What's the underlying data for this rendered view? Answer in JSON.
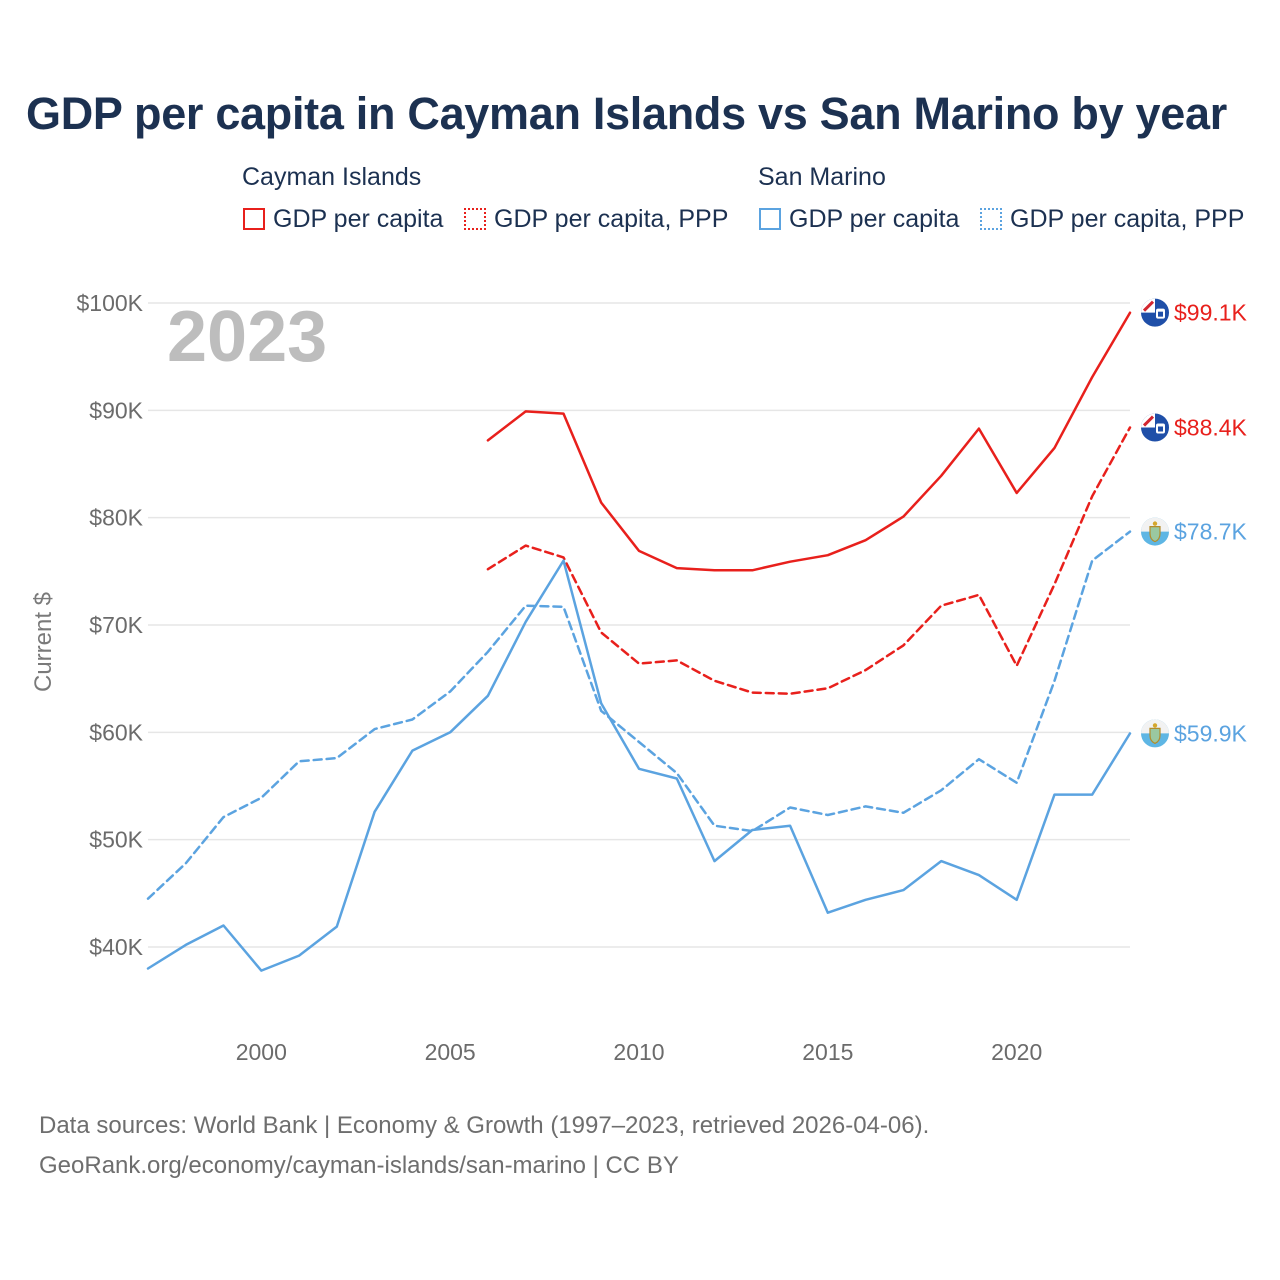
{
  "title": "GDP per capita in Cayman Islands vs San Marino by year",
  "legend": {
    "groups": [
      {
        "label": "Cayman Islands",
        "items": [
          {
            "label": "GDP per capita",
            "color": "#e8201c",
            "style": "solid"
          },
          {
            "label": "GDP per capita, PPP",
            "color": "#e8201c",
            "style": "dotted"
          }
        ]
      },
      {
        "label": "San Marino",
        "items": [
          {
            "label": "GDP per capita",
            "color": "#5ba3e0",
            "style": "solid"
          },
          {
            "label": "GDP per capita, PPP",
            "color": "#5ba3e0",
            "style": "dotted"
          }
        ]
      }
    ]
  },
  "year_label": "2023",
  "sources": {
    "line1": "Data sources: World Bank | Economy & Growth (1997–2023, retrieved 2026-04-06).",
    "line2": "GeoRank.org/economy/cayman-islands/san-marino | CC BY"
  },
  "chart_data": {
    "type": "line",
    "ylabel": "Current $",
    "xlabel": "",
    "xlim": [
      1997,
      2023
    ],
    "ylim": [
      40000,
      100000
    ],
    "x_ticks": [
      2000,
      2005,
      2010,
      2015,
      2020
    ],
    "x_tick_labels": [
      "2000",
      "2005",
      "2010",
      "2015",
      "2020"
    ],
    "y_ticks": [
      40000,
      50000,
      60000,
      70000,
      80000,
      90000,
      100000
    ],
    "y_tick_labels": [
      "$40K",
      "$50K",
      "$60K",
      "$70K",
      "$80K",
      "$90K",
      "$100K"
    ],
    "grid": true,
    "series": [
      {
        "name": "Cayman Islands GDP per capita",
        "country": "Cayman Islands",
        "color": "#e8201c",
        "dash": "solid",
        "end_label": "$99.1K",
        "points": [
          [
            2006,
            87200
          ],
          [
            2007,
            89900
          ],
          [
            2008,
            89700
          ],
          [
            2009,
            81400
          ],
          [
            2010,
            76900
          ],
          [
            2011,
            75300
          ],
          [
            2012,
            75100
          ],
          [
            2013,
            75100
          ],
          [
            2014,
            75900
          ],
          [
            2015,
            76500
          ],
          [
            2016,
            77900
          ],
          [
            2017,
            80100
          ],
          [
            2018,
            83900
          ],
          [
            2019,
            88300
          ],
          [
            2020,
            82300
          ],
          [
            2021,
            86500
          ],
          [
            2022,
            93100
          ],
          [
            2023,
            99100
          ]
        ]
      },
      {
        "name": "Cayman Islands GDP per capita, PPP",
        "country": "Cayman Islands",
        "color": "#e8201c",
        "dash": "dashed",
        "end_label": "$88.4K",
        "points": [
          [
            2006,
            75200
          ],
          [
            2007,
            77400
          ],
          [
            2008,
            76300
          ],
          [
            2009,
            69300
          ],
          [
            2010,
            66400
          ],
          [
            2011,
            66700
          ],
          [
            2012,
            64800
          ],
          [
            2013,
            63700
          ],
          [
            2014,
            63600
          ],
          [
            2015,
            64100
          ],
          [
            2016,
            65800
          ],
          [
            2017,
            68100
          ],
          [
            2018,
            71800
          ],
          [
            2019,
            72800
          ],
          [
            2020,
            66200
          ],
          [
            2021,
            73800
          ],
          [
            2022,
            82000
          ],
          [
            2023,
            88400
          ]
        ]
      },
      {
        "name": "San Marino GDP per capita",
        "country": "San Marino",
        "color": "#5ba3e0",
        "dash": "solid",
        "end_label": "$59.9K",
        "points": [
          [
            1997,
            38000
          ],
          [
            1998,
            40200
          ],
          [
            1999,
            42000
          ],
          [
            2000,
            37800
          ],
          [
            2001,
            39200
          ],
          [
            2002,
            41900
          ],
          [
            2003,
            52600
          ],
          [
            2004,
            58300
          ],
          [
            2005,
            60000
          ],
          [
            2006,
            63400
          ],
          [
            2007,
            70300
          ],
          [
            2008,
            76000
          ],
          [
            2009,
            62700
          ],
          [
            2010,
            56600
          ],
          [
            2011,
            55700
          ],
          [
            2012,
            48000
          ],
          [
            2013,
            50900
          ],
          [
            2014,
            51300
          ],
          [
            2015,
            43200
          ],
          [
            2016,
            44400
          ],
          [
            2017,
            45300
          ],
          [
            2018,
            48000
          ],
          [
            2019,
            46700
          ],
          [
            2020,
            44400
          ],
          [
            2021,
            54200
          ],
          [
            2022,
            54200
          ],
          [
            2023,
            59900
          ]
        ]
      },
      {
        "name": "San Marino GDP per capita, PPP",
        "country": "San Marino",
        "color": "#5ba3e0",
        "dash": "dashed",
        "end_label": "$78.7K",
        "points": [
          [
            1997,
            44500
          ],
          [
            1998,
            47800
          ],
          [
            1999,
            52100
          ],
          [
            2000,
            53900
          ],
          [
            2001,
            57300
          ],
          [
            2002,
            57600
          ],
          [
            2003,
            60300
          ],
          [
            2004,
            61200
          ],
          [
            2005,
            63800
          ],
          [
            2006,
            67500
          ],
          [
            2007,
            71800
          ],
          [
            2008,
            71700
          ],
          [
            2009,
            62000
          ],
          [
            2010,
            59100
          ],
          [
            2011,
            56200
          ],
          [
            2012,
            51300
          ],
          [
            2013,
            50800
          ],
          [
            2014,
            53000
          ],
          [
            2015,
            52300
          ],
          [
            2016,
            53100
          ],
          [
            2017,
            52500
          ],
          [
            2018,
            54600
          ],
          [
            2019,
            57500
          ],
          [
            2020,
            55300
          ],
          [
            2021,
            64800
          ],
          [
            2022,
            76000
          ],
          [
            2023,
            78700
          ]
        ]
      }
    ]
  }
}
